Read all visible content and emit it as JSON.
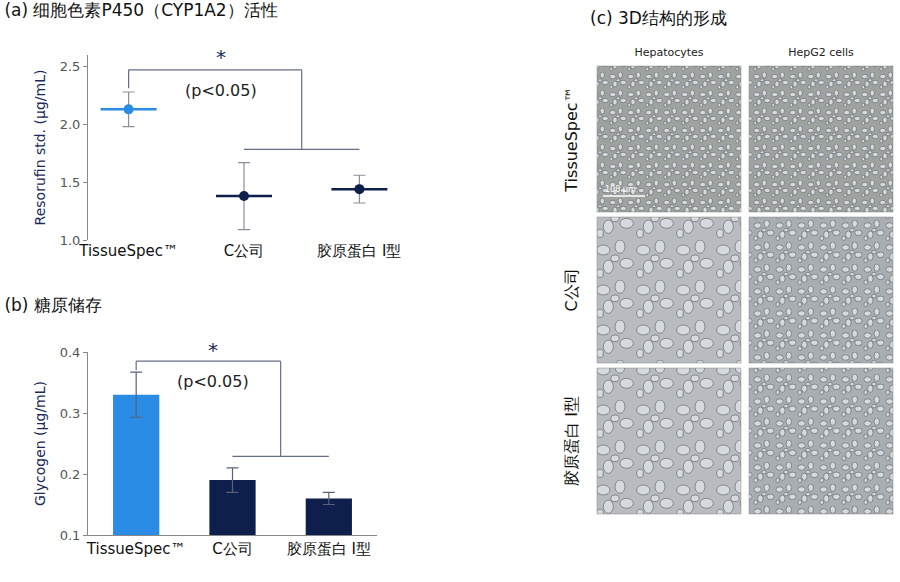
{
  "chart_data": [
    {
      "type": "scatter",
      "title": "(a) 细胞色素P450（CYP1A2）活性",
      "y_label": "Resorufin std. (µg/mL)",
      "categories": [
        "TissueSpec™",
        "C公司",
        "胶原蛋白 Ⅰ型"
      ],
      "values": [
        2.13,
        1.38,
        1.44
      ],
      "error": [
        0.15,
        0.29,
        0.12
      ],
      "colors": [
        "#2b8ce6",
        "#0f1f4b",
        "#0f1f4b"
      ],
      "marker": "circle",
      "ylim": [
        1.0,
        2.6
      ],
      "yticks": [
        {
          "value": 1,
          "label": "1.0"
        },
        {
          "value": 1.5,
          "label": "1.5"
        },
        {
          "value": 2,
          "label": "2.0"
        },
        {
          "value": 2.5,
          "label": "2.5"
        }
      ],
      "grid": false,
      "annotations": [
        "*",
        "(p<0.05)"
      ]
    },
    {
      "type": "bar",
      "title": "(b) 糖原储存",
      "y_label": "Glycogen (µg/mL)",
      "categories": [
        "TissueSpec™",
        "C公司",
        "胶原蛋白 Ⅰ型"
      ],
      "values": [
        0.33,
        0.19,
        0.16
      ],
      "error": [
        0.037,
        0.02,
        0.01
      ],
      "colors": [
        "#2b8ce6",
        "#0f1f4b",
        "#0f1f4b"
      ],
      "ylim": [
        0.1,
        0.4
      ],
      "yticks": [
        0.1,
        0.2,
        0.3,
        0.4
      ],
      "grid": false,
      "annotations": [
        "*",
        "(p<0.05)"
      ]
    }
  ],
  "panel_c": {
    "title": "(c) 3D结构的形成",
    "columns": [
      "Hepatocytes",
      "HepG2 cells"
    ],
    "rows": [
      "TissueSpec™",
      "C公司",
      "胶原蛋白 Ⅰ型"
    ],
    "scale_bar": "100 µm"
  }
}
